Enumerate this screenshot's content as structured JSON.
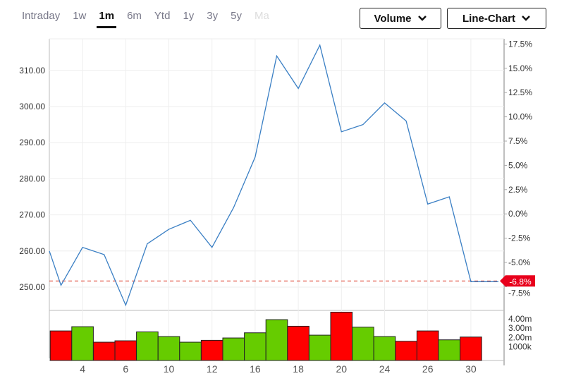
{
  "range_tabs": [
    {
      "label": "Intraday",
      "active": false
    },
    {
      "label": "1w",
      "active": false
    },
    {
      "label": "1m",
      "active": true
    },
    {
      "label": "6m",
      "active": false
    },
    {
      "label": "Ytd",
      "active": false
    },
    {
      "label": "1y",
      "active": false
    },
    {
      "label": "3y",
      "active": false
    },
    {
      "label": "5y",
      "active": false
    },
    {
      "label": "Ma",
      "active": false
    }
  ],
  "dropdowns": {
    "volume": "Volume",
    "chart_type": "Line-Chart",
    "chevron_icon": "chevron-down-icon"
  },
  "colors": {
    "line": "#3a7fc4",
    "up": "#66cc00",
    "down": "#ff0000",
    "reference": "#e05040"
  },
  "chart_data": [
    {
      "type": "line",
      "price_ticks": [
        "310.00",
        "300.00",
        "290.00",
        "280.00",
        "270.00",
        "260.00",
        "250.00"
      ],
      "price_tick_values": [
        310,
        300,
        290,
        280,
        270,
        260,
        250
      ],
      "percent_ticks": [
        "17.5%",
        "15.0%",
        "12.5%",
        "10.0%",
        "7.5%",
        "5.0%",
        "2.5%",
        "0.0%",
        "-2.5%",
        "-5.0%",
        "-7.5%"
      ],
      "percent_tick_values": [
        17.5,
        15,
        12.5,
        10,
        7.5,
        5,
        2.5,
        0,
        -2.5,
        -5,
        -7.5
      ],
      "ylim": [
        245,
        318
      ],
      "values": [
        260,
        250.5,
        261,
        259,
        245,
        262,
        266,
        268.5,
        261,
        272,
        286,
        314,
        305,
        317,
        293,
        295,
        301,
        296,
        273,
        275,
        251.5
      ],
      "reference_value": 251.7,
      "last_change_label": "-6.8%",
      "grid": true
    },
    {
      "type": "bar",
      "volume_ticks": [
        "4.00m",
        "3.00m",
        "2.00m",
        "1000k"
      ],
      "volume_tick_values": [
        4,
        3,
        2,
        1
      ],
      "unit": "m",
      "values": [
        2.7,
        3.15,
        1.5,
        1.65,
        2.6,
        2.1,
        1.5,
        1.7,
        1.95,
        2.5,
        3.9,
        3.2,
        2.25,
        4.7,
        3.1,
        2.1,
        1.6,
        2.7,
        1.75,
        2.05
      ],
      "direction": [
        "down",
        "up",
        "down",
        "down",
        "up",
        "up",
        "up",
        "down",
        "up",
        "up",
        "up",
        "down",
        "up",
        "down",
        "up",
        "up",
        "down",
        "down",
        "up",
        "down"
      ]
    }
  ],
  "x_ticks": [
    {
      "index": 1,
      "label": "4"
    },
    {
      "index": 3,
      "label": "6"
    },
    {
      "index": 5,
      "label": "10"
    },
    {
      "index": 7,
      "label": "12"
    },
    {
      "index": 9,
      "label": "16"
    },
    {
      "index": 11,
      "label": "18"
    },
    {
      "index": 13,
      "label": "20"
    },
    {
      "index": 15,
      "label": "24"
    },
    {
      "index": 17,
      "label": "26"
    },
    {
      "index": 19,
      "label": "30"
    }
  ]
}
